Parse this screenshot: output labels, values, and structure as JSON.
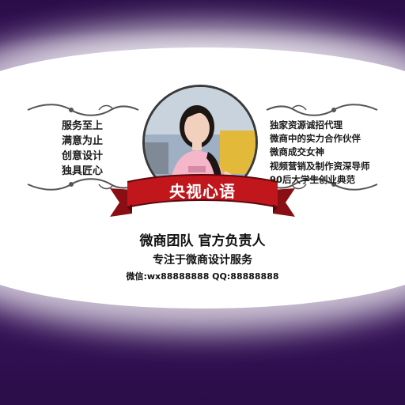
{
  "left_features": [
    "服务至上",
    "满意为止",
    "创意设计",
    "独具匠心"
  ],
  "right_features": [
    "独家资源诚招代理",
    "微商中的实力合作伙伴",
    "微商成交女神",
    "视频营销及制作资深导师",
    "90后大学生创业典范"
  ],
  "banner": {
    "title": "央视心语"
  },
  "headline": "微商团队 官方负责人",
  "subheadline": "专注于微商设计服务",
  "contact": "微信:wx88888888 QQ:88888888",
  "colors": {
    "ribbon": "#c0161c",
    "background_purple": "#3c155f",
    "text": "#111111"
  }
}
